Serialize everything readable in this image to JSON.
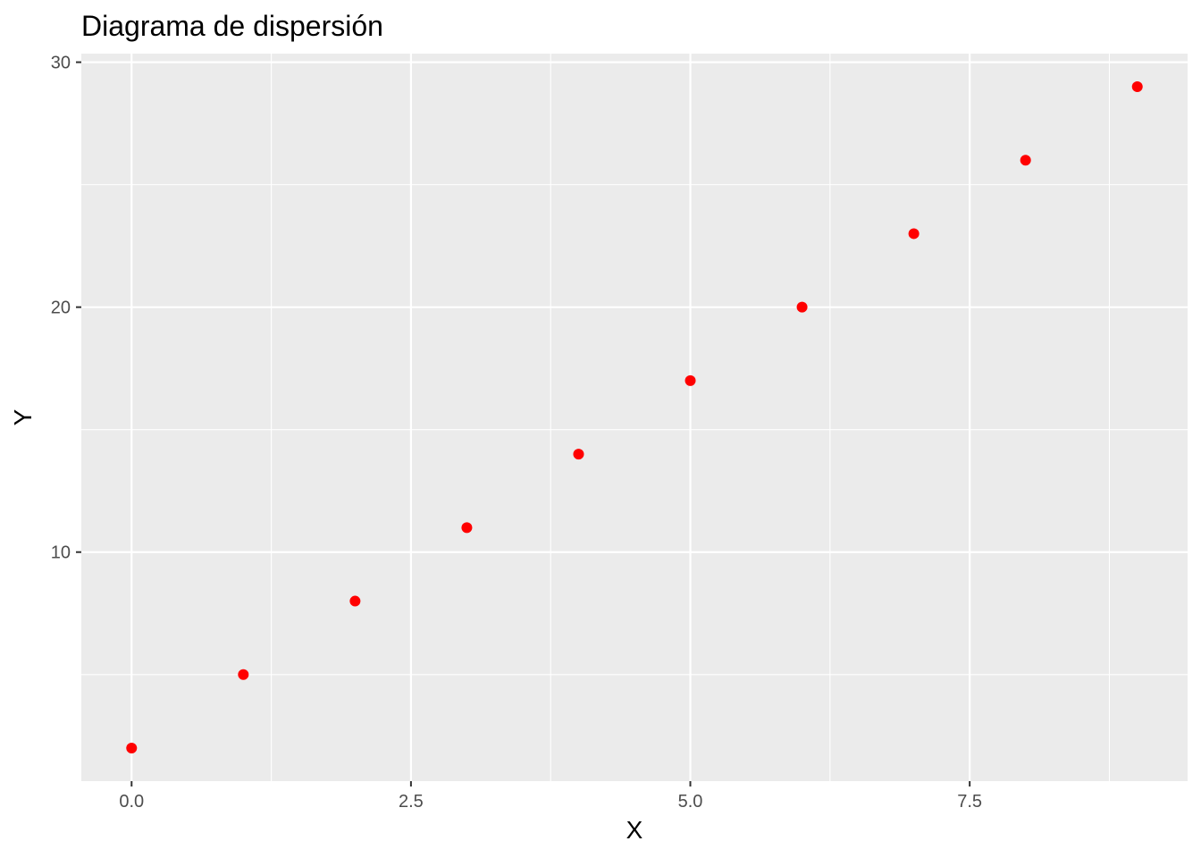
{
  "chart_data": {
    "type": "scatter",
    "title": "Diagrama de dispersión",
    "xlabel": "X",
    "ylabel": "Y",
    "xlim": [
      -0.45,
      9.45
    ],
    "ylim": [
      0.65,
      30.35
    ],
    "x_ticks": [
      0.0,
      2.5,
      5.0,
      7.5
    ],
    "x_tick_labels": [
      "0.0",
      "2.5",
      "5.0",
      "7.5"
    ],
    "x_minor_ticks": [
      1.25,
      3.75,
      6.25,
      8.75
    ],
    "y_ticks": [
      10,
      20,
      30
    ],
    "y_tick_labels": [
      "10",
      "20",
      "30"
    ],
    "y_minor_ticks": [
      5,
      15,
      25
    ],
    "grid": true,
    "legend": "none",
    "colors": {
      "panel_background": "#ebebeb",
      "grid_line": "#ffffff",
      "point": "#ff0000",
      "tick_mark": "#333333",
      "tick_label": "#4d4d4d"
    },
    "series": [
      {
        "x": [
          0,
          1,
          2,
          3,
          4,
          5,
          6,
          7,
          8,
          9
        ],
        "y": [
          2,
          5,
          8,
          11,
          14,
          17,
          20,
          23,
          26,
          29
        ]
      }
    ]
  }
}
